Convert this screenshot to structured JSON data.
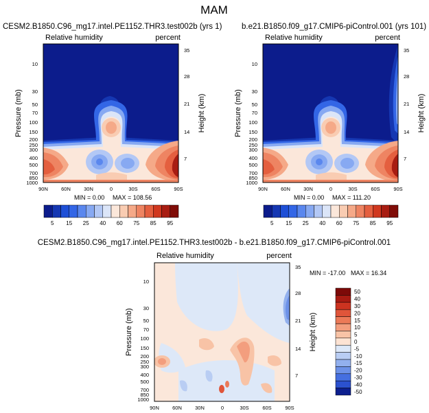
{
  "figure": {
    "title": "MAM"
  },
  "chart_data": [
    {
      "type": "heatmap",
      "title": "CESM2.B1850.C96_mg17.intel.PE1152.THR3.test002b (yrs 1)",
      "left_label": "Relative humidity",
      "right_label": "percent",
      "ylabel": "Pressure (mb)",
      "y2label": "Height (km)",
      "x_ticks": [
        "90N",
        "60N",
        "30N",
        "0",
        "30S",
        "60S",
        "90S"
      ],
      "y_ticks": [
        "10",
        "30",
        "50",
        "70",
        "100",
        "150",
        "200",
        "250",
        "300",
        "400",
        "500",
        "700",
        "850",
        "1000"
      ],
      "y2_ticks": [
        "35",
        "28",
        "21",
        "14",
        "7"
      ],
      "stats": {
        "min": "MIN =   0.00",
        "max": "MAX = 108.56"
      },
      "colorbar_labels": [
        "5",
        "15",
        "25",
        "40",
        "60",
        "75",
        "85",
        "95"
      ]
    },
    {
      "type": "heatmap",
      "title": "b.e21.B1850.f09_g17.CMIP6-piControl.001 (yrs 101)",
      "left_label": "Relative humidity",
      "right_label": "percent",
      "ylabel": "Pressure (mb)",
      "y2label": "Height (km)",
      "x_ticks": [
        "90N",
        "60N",
        "30N",
        "0",
        "30S",
        "60S",
        "90S"
      ],
      "y_ticks": [
        "10",
        "30",
        "50",
        "70",
        "100",
        "150",
        "200",
        "250",
        "300",
        "400",
        "500",
        "700",
        "850",
        "1000"
      ],
      "y2_ticks": [
        "35",
        "28",
        "21",
        "14",
        "7"
      ],
      "stats": {
        "min": "MIN =   0.00",
        "max": "MAX = 111.20"
      },
      "colorbar_labels": [
        "5",
        "15",
        "25",
        "40",
        "60",
        "75",
        "85",
        "95"
      ]
    },
    {
      "type": "heatmap",
      "title": "CESM2.B1850.C96_mg17.intel.PE1152.THR3.test002b - b.e21.B1850.f09_g17.CMIP6-piControl.001",
      "left_label": "Relative humidity",
      "right_label": "percent",
      "ylabel": "Pressure (mb)",
      "y2label": "Height (km)",
      "x_ticks": [
        "90N",
        "60N",
        "30N",
        "0",
        "30S",
        "60S",
        "90S"
      ],
      "y_ticks": [
        "10",
        "30",
        "50",
        "70",
        "100",
        "150",
        "200",
        "250",
        "300",
        "400",
        "500",
        "700",
        "850",
        "1000"
      ],
      "y2_ticks": [
        "35",
        "28",
        "21",
        "14",
        "7"
      ],
      "stats": {
        "min": "MIN = -17.00",
        "max": "MAX =  16.34"
      },
      "colorbar_labels": [
        "50",
        "40",
        "30",
        "20",
        "15",
        "10",
        "5",
        "0",
        "-5",
        "-10",
        "-15",
        "-20",
        "-30",
        "-40",
        "-50"
      ]
    }
  ],
  "colors": {
    "abs_scale": [
      "#0c1c8c",
      "#1537b2",
      "#1e4fd6",
      "#3366e6",
      "#5a87ee",
      "#87a9f2",
      "#b3c8f5",
      "#dbe5f8",
      "#fbe7da",
      "#f9ccb2",
      "#f5a988",
      "#ee8462",
      "#e45f3f",
      "#d0381f",
      "#a81d12",
      "#800d08"
    ],
    "diff_scale": [
      "#7d0a08",
      "#a81b12",
      "#cc3320",
      "#e0553a",
      "#ec7a58",
      "#f39e7e",
      "#f8c3a6",
      "#fde3d3",
      "#dde8f8",
      "#b9cdf3",
      "#92b0ee",
      "#6c91e8",
      "#456fe0",
      "#2b51cf",
      "#0c1f8e"
    ]
  }
}
